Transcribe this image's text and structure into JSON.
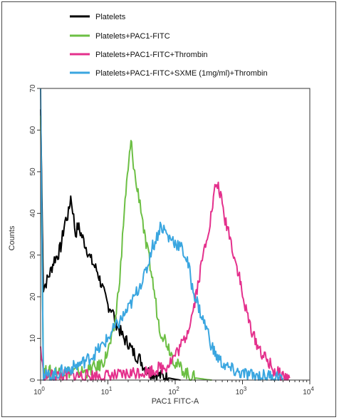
{
  "chart_data": {
    "type": "line",
    "xlabel": "PAC1 FITC-A",
    "ylabel": "Counts",
    "x_scale": "log",
    "xlim": [
      1,
      10000
    ],
    "ylim": [
      0,
      70
    ],
    "x_ticks": [
      {
        "value": 1,
        "base": "10",
        "exp": "0"
      },
      {
        "value": 10,
        "base": "10",
        "exp": "1"
      },
      {
        "value": 100,
        "base": "10",
        "exp": "2"
      },
      {
        "value": 1000,
        "base": "10",
        "exp": "3"
      },
      {
        "value": 10000,
        "base": "10",
        "exp": "4"
      }
    ],
    "y_ticks": [
      0,
      10,
      20,
      30,
      40,
      50,
      60,
      70
    ],
    "grid": false,
    "legend_position": "top",
    "series": [
      {
        "name": "Platelets",
        "color": "#000000",
        "x": [
          1.0,
          1.1,
          1.25,
          1.4,
          1.6,
          1.8,
          2.0,
          2.3,
          2.6,
          2.8,
          3.0,
          3.3,
          3.6,
          4.0,
          4.5,
          5.0,
          5.5,
          6.0,
          7.0,
          8.0,
          9.0,
          10.0,
          11.5,
          13.0,
          15.0,
          17.0,
          20.0,
          23.0,
          26.0,
          30.0,
          35.0,
          40.0,
          50.0,
          60.0,
          70.0,
          80.0,
          100.0,
          120.0
        ],
        "y": [
          65.0,
          22.0,
          24.0,
          26.0,
          29.0,
          30.0,
          32.0,
          38.0,
          40.0,
          44.0,
          41.0,
          35.0,
          37.0,
          35.0,
          33.0,
          31.0,
          29.0,
          28.0,
          26.0,
          23.0,
          20.0,
          18.0,
          17.0,
          14.0,
          12.0,
          10.0,
          9.0,
          7.0,
          6.0,
          5.0,
          3.0,
          2.0,
          1.5,
          1.0,
          0.8,
          0.5,
          0.2,
          0.0
        ]
      },
      {
        "name": "Platelets+PAC1-FITC",
        "color": "#6cbf44",
        "x": [
          1.0,
          1.1,
          2.0,
          3.0,
          4.0,
          5.0,
          6.0,
          7.0,
          8.0,
          9.0,
          10.0,
          11.0,
          12.0,
          13.0,
          14.0,
          15.0,
          16.0,
          17.0,
          18.0,
          19.0,
          20.0,
          21.0,
          22.0,
          23.0,
          24.0,
          25.0,
          26.0,
          28.0,
          30.0,
          33.0,
          36.0,
          40.0,
          45.0,
          50.0,
          55.0,
          60.0,
          70.0,
          80.0,
          90.0,
          100.0,
          120.0,
          140.0,
          160.0,
          200.0,
          250.0,
          300.0,
          350.0
        ],
        "y": [
          65.0,
          2.0,
          2.0,
          2.0,
          2.0,
          2.0,
          3.0,
          3.0,
          4.0,
          5.0,
          7.0,
          9.0,
          11.0,
          15.0,
          20.0,
          25.0,
          30.0,
          38.0,
          43.0,
          47.0,
          50.0,
          54.0,
          57.0,
          55.0,
          52.0,
          50.0,
          47.0,
          45.0,
          43.0,
          38.0,
          33.0,
          30.0,
          25.0,
          20.0,
          15.0,
          12.0,
          10.0,
          8.0,
          6.0,
          4.0,
          3.0,
          2.0,
          1.0,
          0.5,
          0.3,
          0.1,
          0.0
        ]
      },
      {
        "name": "Platelets+PAC1-FITC+Thrombin",
        "color": "#e4308c",
        "x": [
          1.0,
          1.1,
          2.0,
          4.0,
          7.0,
          10.0,
          15.0,
          20.0,
          30.0,
          40.0,
          50.0,
          60.0,
          70.0,
          80.0,
          90.0,
          100.0,
          120.0,
          140.0,
          160.0,
          180.0,
          200.0,
          230.0,
          260.0,
          300.0,
          330.0,
          360.0,
          400.0,
          450.0,
          500.0,
          550.0,
          600.0,
          700.0,
          800.0,
          900.0,
          1000.0,
          1200.0,
          1500.0,
          2000.0,
          2500.0,
          3000.0,
          4000.0,
          5000.0
        ],
        "y": [
          8.0,
          1.0,
          1.0,
          1.0,
          1.0,
          1.0,
          1.0,
          1.5,
          2.0,
          2.0,
          2.5,
          3.0,
          3.0,
          4.0,
          5.0,
          6.0,
          8.0,
          10.0,
          13.0,
          16.0,
          20.0,
          25.0,
          30.0,
          35.0,
          38.0,
          42.0,
          47.0,
          46.0,
          42.0,
          38.0,
          37.0,
          32.0,
          28.0,
          25.0,
          20.0,
          15.0,
          10.0,
          6.0,
          4.0,
          2.0,
          1.0,
          0.5
        ]
      },
      {
        "name": "Platelets+PAC1-FITC+SXME (1mg/ml)+Thrombin",
        "color": "#3aa6e0",
        "x": [
          1.0,
          1.1,
          1.5,
          2.0,
          3.0,
          4.0,
          5.0,
          6.0,
          7.0,
          8.0,
          10.0,
          12.0,
          15.0,
          18.0,
          20.0,
          25.0,
          30.0,
          35.0,
          40.0,
          45.0,
          50.0,
          55.0,
          60.0,
          70.0,
          80.0,
          90.0,
          100.0,
          120.0,
          140.0,
          160.0,
          180.0,
          200.0,
          250.0,
          300.0,
          350.0,
          400.0,
          500.0,
          600.0,
          800.0,
          1000.0,
          1500.0,
          2000.0,
          3000.0,
          4000.0
        ],
        "y": [
          70.0,
          1.0,
          1.0,
          2.0,
          3.0,
          4.0,
          5.0,
          6.0,
          7.0,
          8.0,
          10.0,
          12.0,
          14.0,
          16.0,
          17.0,
          20.0,
          23.0,
          25.0,
          28.0,
          32.0,
          33.0,
          35.0,
          37.0,
          36.0,
          34.0,
          34.0,
          33.0,
          32.0,
          30.0,
          27.0,
          22.0,
          20.0,
          15.0,
          12.0,
          8.0,
          6.0,
          4.0,
          3.0,
          2.0,
          1.5,
          1.0,
          1.0,
          1.0,
          0.5
        ]
      }
    ]
  }
}
